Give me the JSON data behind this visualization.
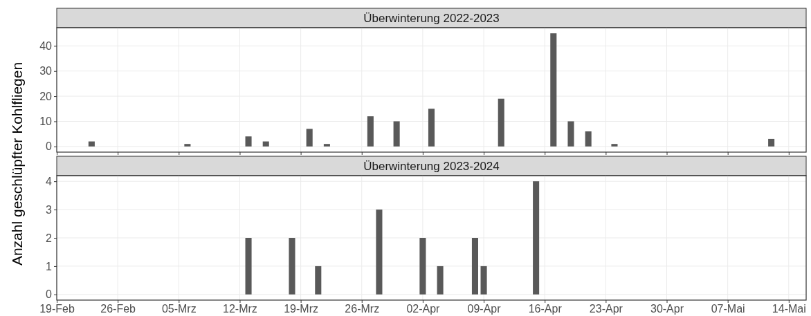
{
  "chart_data": [
    {
      "type": "bar",
      "title": "Überwinterung 2022-2023",
      "ylabel": "Anzahl geschlüpfter Kohlfliegen",
      "x": [
        "--02-23",
        "--03-06",
        "--03-13",
        "--03-15",
        "--03-20",
        "--03-22",
        "--03-27",
        "--03-30",
        "--04-03",
        "--04-11",
        "--04-17",
        "--04-19",
        "--04-21",
        "--04-24",
        "--05-12"
      ],
      "values": [
        2,
        1,
        4,
        2,
        7,
        1,
        12,
        10,
        15,
        19,
        45,
        10,
        6,
        1,
        3
      ],
      "color": "#595959",
      "xlim": [
        "--02-19",
        "--05-16"
      ],
      "ylim": [
        -2.25,
        47.25
      ],
      "yticks": [
        0,
        10,
        20,
        30,
        40
      ],
      "grid": true,
      "tick_labels": "y"
    },
    {
      "type": "bar",
      "title": "Überwinterung 2023-2024",
      "x": [
        "--03-13",
        "--03-18",
        "--03-21",
        "--03-28",
        "--04-02",
        "--04-04",
        "--04-08",
        "--04-09",
        "--04-15"
      ],
      "values": [
        2,
        2,
        1,
        3,
        2,
        1,
        2,
        1,
        4
      ],
      "color": "#595959",
      "xlim": [
        "--02-19",
        "--05-16"
      ],
      "ylim": [
        -0.2,
        4.2
      ],
      "yticks": [
        0,
        1,
        2,
        3,
        4
      ],
      "xticks": [
        {
          "value": "--02-19",
          "label": "19-Feb"
        },
        {
          "value": "--02-26",
          "label": "26-Feb"
        },
        {
          "value": "--03-05",
          "label": "05-Mrz"
        },
        {
          "value": "--03-12",
          "label": "12-Mrz"
        },
        {
          "value": "--03-19",
          "label": "19-Mrz"
        },
        {
          "value": "--03-26",
          "label": "26-Mrz"
        },
        {
          "value": "--04-02",
          "label": "02-Apr"
        },
        {
          "value": "--04-09",
          "label": "09-Apr"
        },
        {
          "value": "--04-16",
          "label": "16-Apr"
        },
        {
          "value": "--04-23",
          "label": "23-Apr"
        },
        {
          "value": "--04-30",
          "label": "30-Apr"
        },
        {
          "value": "--05-07",
          "label": "07-Mai"
        },
        {
          "value": "--05-14",
          "label": "14-Mai"
        }
      ],
      "grid": true
    }
  ]
}
